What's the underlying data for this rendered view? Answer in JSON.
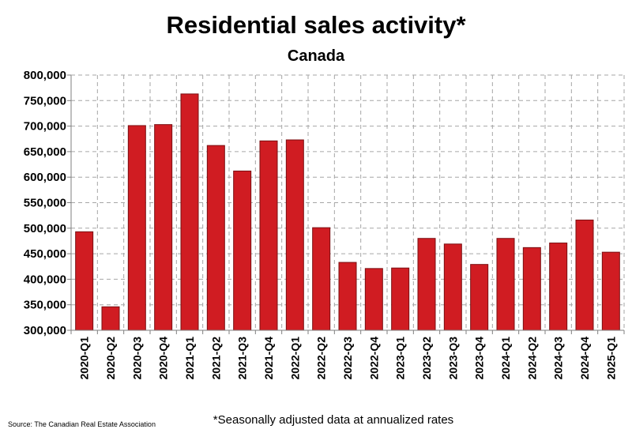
{
  "chart_data": {
    "type": "bar",
    "title": "Residential sales activity*",
    "subtitle": "Canada",
    "categories": [
      "2020-Q1",
      "2020-Q2",
      "2020-Q3",
      "2020-Q4",
      "2021-Q1",
      "2021-Q2",
      "2021-Q3",
      "2021-Q4",
      "2022-Q1",
      "2022-Q2",
      "2022-Q3",
      "2022-Q4",
      "2023-Q1",
      "2023-Q2",
      "2023-Q3",
      "2023-Q4",
      "2024-Q1",
      "2024-Q2",
      "2024-Q3",
      "2024-Q4",
      "2025-Q1"
    ],
    "values": [
      493000,
      346000,
      701000,
      703000,
      763000,
      662000,
      612000,
      671000,
      673000,
      501000,
      433000,
      421000,
      422000,
      480000,
      469000,
      429000,
      480000,
      462000,
      471000,
      516000,
      453000
    ],
    "ylim": [
      300000,
      800000
    ],
    "yticks": [
      300000,
      350000,
      400000,
      450000,
      500000,
      550000,
      600000,
      650000,
      700000,
      750000,
      800000
    ],
    "ytick_labels": [
      "300,000",
      "350,000",
      "400,000",
      "450,000",
      "500,000",
      "550,000",
      "600,000",
      "650,000",
      "700,000",
      "750,000",
      "800,000"
    ],
    "xlabel": "",
    "ylabel": "",
    "grid": true,
    "bar_color": "#d01c22",
    "bar_edge_color": "#7a0f12",
    "grid_color": "#a6a6a6"
  },
  "source": "Source: The Canadian Real Estate Association",
  "footnote": "*Seasonally adjusted data at annualized rates"
}
